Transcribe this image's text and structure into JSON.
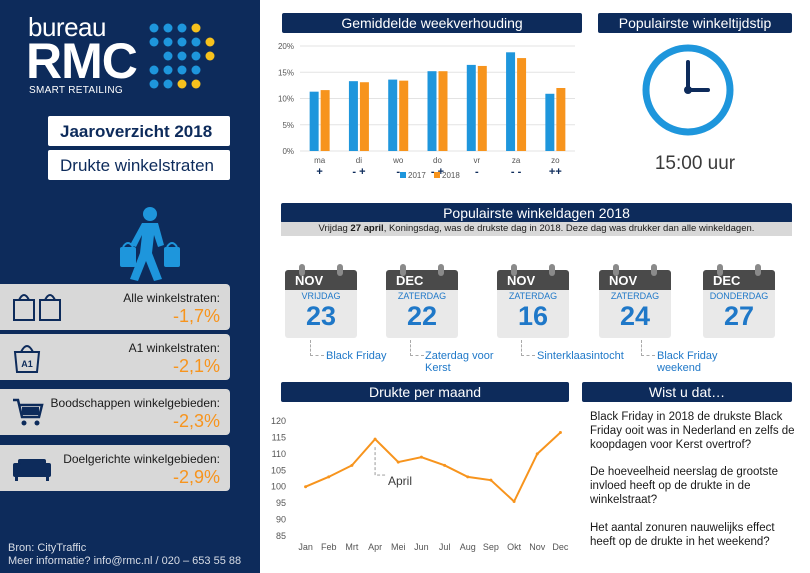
{
  "sidebar": {
    "logo_word": "bureau",
    "logo_brand": "RMC",
    "logo_tagline": "SMART RETAILING",
    "title_year": "Jaaroverzicht 2018",
    "title_sub": "Drukte winkelstraten",
    "stats": [
      {
        "label": "Alle winkelstraten:",
        "value": "-1,7%",
        "icon": "shopping-bags-icon"
      },
      {
        "label": "A1 winkelstraten:",
        "value": "-2,1%",
        "icon": "a1-bag-icon"
      },
      {
        "label": "Boodschappen winkelgebieden:",
        "value": "-2,3%",
        "icon": "shopping-cart-icon"
      },
      {
        "label": "Doelgerichte winkelgebieden:",
        "value": "-2,9%",
        "icon": "sofa-icon"
      }
    ],
    "source_line": "Bron: CityTraffic",
    "contact_line": "Meer informatie? info@rmc.nl / 020 – 653 55 88"
  },
  "week_panel": {
    "title": "Gemiddelde weekverhouding",
    "change_marks": [
      "+",
      "- +",
      "-",
      "- +",
      "-",
      "- -",
      "++"
    ]
  },
  "time_panel": {
    "title": "Populairste winkeltijdstip",
    "time_text": "15:00 uur",
    "icon": "clock-icon"
  },
  "days_panel": {
    "title": "Populairste winkeldagen 2018",
    "subtitle_pre": "Vrijdag ",
    "subtitle_bold": "27 april",
    "subtitle_post": ", Koningsdag, was de drukste dag in 2018. Deze dag was drukker dan alle winkeldagen.",
    "days": [
      {
        "month": "NOV",
        "weekday": "VRIJDAG",
        "date": "23",
        "note": "Black Friday"
      },
      {
        "month": "DEC",
        "weekday": "ZATERDAG",
        "date": "22",
        "note": "Zaterdag voor Kerst"
      },
      {
        "month": "NOV",
        "weekday": "ZATERDAG",
        "date": "16",
        "note": "Sinterklaasintocht"
      },
      {
        "month": "NOV",
        "weekday": "ZATERDAG",
        "date": "24",
        "note": "Black Friday weekend"
      },
      {
        "month": "DEC",
        "weekday": "DONDERDAG",
        "date": "27",
        "note": ""
      }
    ]
  },
  "month_panel": {
    "title": "Drukte per maand",
    "annotation": "April"
  },
  "facts_panel": {
    "title": "Wist u dat…",
    "facts": [
      "Black Friday in 2018 de drukste Black Friday ooit was in Nederland en zelfs de koopdagen voor Kerst overtrof?",
      "De hoeveelheid neerslag de grootste invloed heeft op de drukte in de winkelstraat?",
      "Het aantal zonuren nauwelijks effect heeft op de drukte in het weekend?"
    ]
  },
  "colors": {
    "navy": "#0d2b5b",
    "blue": "#1e96dc",
    "orange": "#f7941d",
    "grey": "#d8d8d8"
  },
  "chart_data": [
    {
      "type": "bar",
      "title": "Gemiddelde weekverhouding",
      "categories": [
        "ma",
        "di",
        "wo",
        "do",
        "vr",
        "za",
        "zo"
      ],
      "series": [
        {
          "name": "2017",
          "values": [
            11.3,
            13.3,
            13.6,
            15.2,
            16.4,
            18.8,
            10.9
          ]
        },
        {
          "name": "2018",
          "values": [
            11.6,
            13.1,
            13.4,
            15.2,
            16.2,
            17.7,
            12.0
          ]
        }
      ],
      "yticks": [
        "0%",
        "5%",
        "10%",
        "15%",
        "20%"
      ],
      "ylim": [
        0,
        20
      ],
      "legend": "bottom"
    },
    {
      "type": "line",
      "title": "Drukte per maand",
      "categories": [
        "Jan",
        "Feb",
        "Mrt",
        "Apr",
        "Mei",
        "Jun",
        "Jul",
        "Aug",
        "Sep",
        "Okt",
        "Nov",
        "Dec"
      ],
      "series": [
        {
          "values": [
            100,
            103,
            106.5,
            114.5,
            107.5,
            109,
            106.5,
            103,
            102,
            95.5,
            110,
            116.5
          ]
        }
      ],
      "yticks": [
        "85",
        "90",
        "95",
        "100",
        "105",
        "110",
        "115",
        "120"
      ],
      "ylim": [
        85,
        120
      ]
    }
  ]
}
